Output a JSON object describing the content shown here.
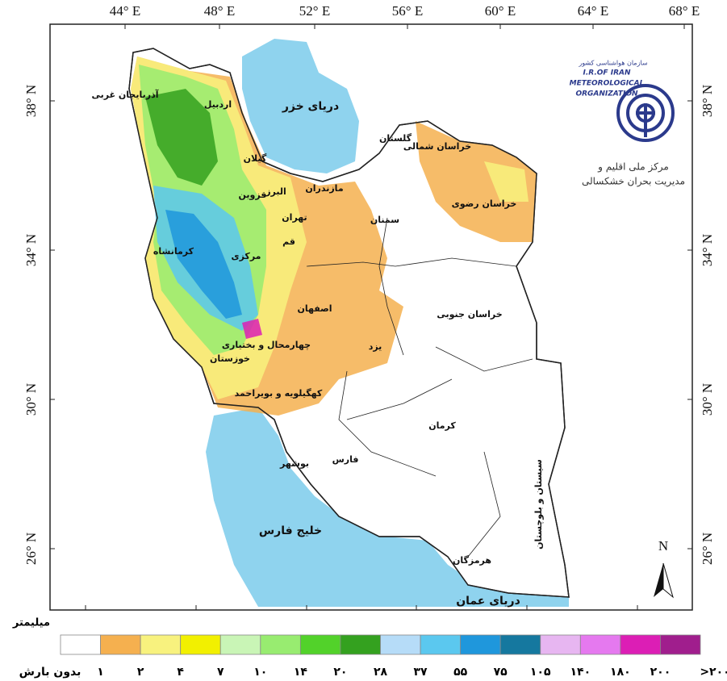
{
  "map": {
    "lon_labels": [
      "44° E",
      "48° E",
      "52° E",
      "56° E",
      "60° E",
      "64° E",
      "68° E"
    ],
    "lat_labels": [
      "38° N",
      "34° N",
      "30° N",
      "26° N"
    ],
    "seas": [
      "دریای خزر",
      "خلیج فارس",
      "دریای عمان"
    ],
    "provinces": [
      "آذربایجان غربی",
      "اردبیل",
      "گیلان",
      "قزوین",
      "البرز",
      "مازندران",
      "تهران",
      "قم",
      "مرکزی",
      "کرمانشاه",
      "اصفهان",
      "چهارمحال و بختیاری",
      "خوزستان",
      "کهگیلویه و بویراحمد",
      "بوشهر",
      "فارس",
      "کرمان",
      "یزد",
      "سمنان",
      "گلستان",
      "خراسان شمالی",
      "خراسان رضوی",
      "خراسان جنوبی",
      "هرمزگان",
      "سیستان و بلوچستان"
    ],
    "north": "N"
  },
  "logo": {
    "org_fa": "سازمان هواشناسی کشور",
    "org_en": [
      "I.R.OF IRAN",
      "METEOROLOGICAL",
      "ORGANIZATION"
    ],
    "center": [
      "مرکز ملی اقلیم و",
      "مدیریت بحران خشکسالی"
    ]
  },
  "legend": {
    "unit": "میلیمتر",
    "colors": [
      "#ffffff",
      "#f5b04f",
      "#f8f27e",
      "#f2f000",
      "#c9f5b6",
      "#98ec70",
      "#52d22a",
      "#34a11f",
      "#b6dcf8",
      "#5bc8ef",
      "#1f97dc",
      "#15789f",
      "#e7b6f1",
      "#e579ef",
      "#dc1eb5",
      "#a01e8d"
    ],
    "labels": [
      "بدون بارش",
      "۱",
      "۲",
      "۴",
      "۷",
      "۱۰",
      "۱۴",
      "۲۰",
      "۲۸",
      "۳۷",
      "۵۵",
      "۷۵",
      "۱۰۵",
      "۱۴۰",
      "۱۸۰",
      "۲۰۰",
      ">۲۰۰"
    ]
  }
}
